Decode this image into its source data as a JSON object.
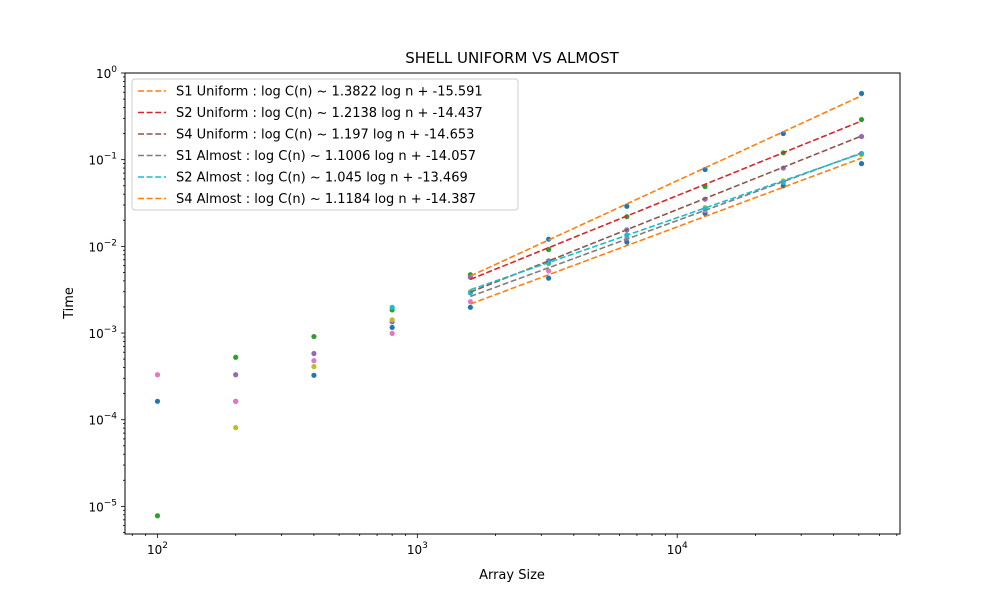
{
  "chart_data": {
    "type": "scatter",
    "title": "SHELL UNIFORM VS ALMOST",
    "xlabel": "Array Size",
    "ylabel": "Time",
    "xscale": "log",
    "yscale": "log",
    "xlim": [
      75,
      72000
    ],
    "ylim": [
      4.8e-06,
      1.0
    ],
    "grid": false,
    "legend_position": "top-left",
    "x_ticks": [
      {
        "value": 100,
        "base": "10",
        "exp": "2"
      },
      {
        "value": 1000,
        "base": "10",
        "exp": "3"
      },
      {
        "value": 10000,
        "base": "10",
        "exp": "4"
      }
    ],
    "y_ticks": [
      {
        "value": 1e-05,
        "base": "10",
        "exp": "−5"
      },
      {
        "value": 0.0001,
        "base": "10",
        "exp": "−4"
      },
      {
        "value": 0.001,
        "base": "10",
        "exp": "−3"
      },
      {
        "value": 0.01,
        "base": "10",
        "exp": "−2"
      },
      {
        "value": 0.1,
        "base": "10",
        "exp": "−1"
      },
      {
        "value": 1,
        "base": "10",
        "exp": "0"
      }
    ],
    "points": [
      {
        "color": "#1f77b4",
        "x": [
          100,
          200,
          400,
          800,
          1600,
          3200,
          6400,
          12800,
          25600,
          51200
        ],
        "y": [
          0.000163,
          0.000163,
          0.000325,
          0.00116,
          0.00198,
          0.0043,
          0.0112,
          0.024,
          0.05,
          0.09
        ]
      },
      {
        "color": "#2ca02c",
        "x": [
          100,
          200,
          400,
          800,
          1600,
          3200,
          6400,
          12800,
          25600,
          51200
        ],
        "y": [
          7.8e-06,
          0.000525,
          0.00091,
          0.00185,
          0.0047,
          0.0092,
          0.022,
          0.049,
          0.12,
          0.29
        ]
      },
      {
        "color": "#e377c2",
        "x": [
          100,
          200,
          400,
          800,
          1600,
          3200,
          6400,
          12800,
          25600,
          51200
        ],
        "y": [
          0.00033,
          0.000163,
          0.00048,
          0.00099,
          0.0023,
          0.0052,
          0.0125,
          0.026,
          0.055,
          0.115
        ]
      },
      {
        "color": "#9467bd",
        "x": [
          200,
          400,
          800,
          1600,
          3200,
          6400,
          12800,
          25600,
          51200
        ],
        "y": [
          0.00033,
          0.00058,
          0.00135,
          0.0044,
          0.0068,
          0.0155,
          0.035,
          0.08,
          0.185
        ]
      },
      {
        "color": "#bcbd22",
        "x": [
          200,
          400,
          800,
          1600,
          3200,
          6400,
          12800,
          25600,
          51200
        ],
        "y": [
          8.1e-05,
          0.00041,
          0.00142,
          0.003,
          0.0063,
          0.0135,
          0.028,
          0.057,
          0.115
        ]
      },
      {
        "color": "#17becf",
        "x": [
          800,
          1600,
          3200,
          6400,
          12800,
          25600,
          51200
        ],
        "y": [
          0.00198,
          0.0029,
          0.0065,
          0.0135,
          0.027,
          0.055,
          0.118
        ]
      },
      {
        "color": "#1f77b4",
        "x": [
          3200,
          6400,
          12800,
          25600,
          51200
        ],
        "y": [
          0.0121,
          0.029,
          0.077,
          0.2,
          0.58
        ]
      }
    ],
    "fit_x_range": [
      1600,
      51200
    ],
    "series": [
      {
        "name": "S1 Uniform : log C(n) ~  1.3822 log n + -15.591",
        "color": "#ff7f0e",
        "slope": 1.3822,
        "intercept": -15.591
      },
      {
        "name": "S2 Uniform : log C(n) ~  1.2138 log n + -14.437",
        "color": "#d62728",
        "slope": 1.2138,
        "intercept": -14.437
      },
      {
        "name": "S4 Uniform : log C(n) ~  1.197 log n + -14.653",
        "color": "#8c564b",
        "slope": 1.197,
        "intercept": -14.653
      },
      {
        "name": "S1 Almost : log C(n) ~  1.1006 log n + -14.057",
        "color": "#7f7f7f",
        "slope": 1.1006,
        "intercept": -14.057
      },
      {
        "name": "S2 Almost : log C(n) ~  1.045 log n + -13.469",
        "color": "#17becf",
        "slope": 1.045,
        "intercept": -13.469
      },
      {
        "name": "S4 Almost : log C(n) ~  1.1184 log n + -14.387",
        "color": "#ff7f0e",
        "slope": 1.1184,
        "intercept": -14.387
      }
    ]
  }
}
